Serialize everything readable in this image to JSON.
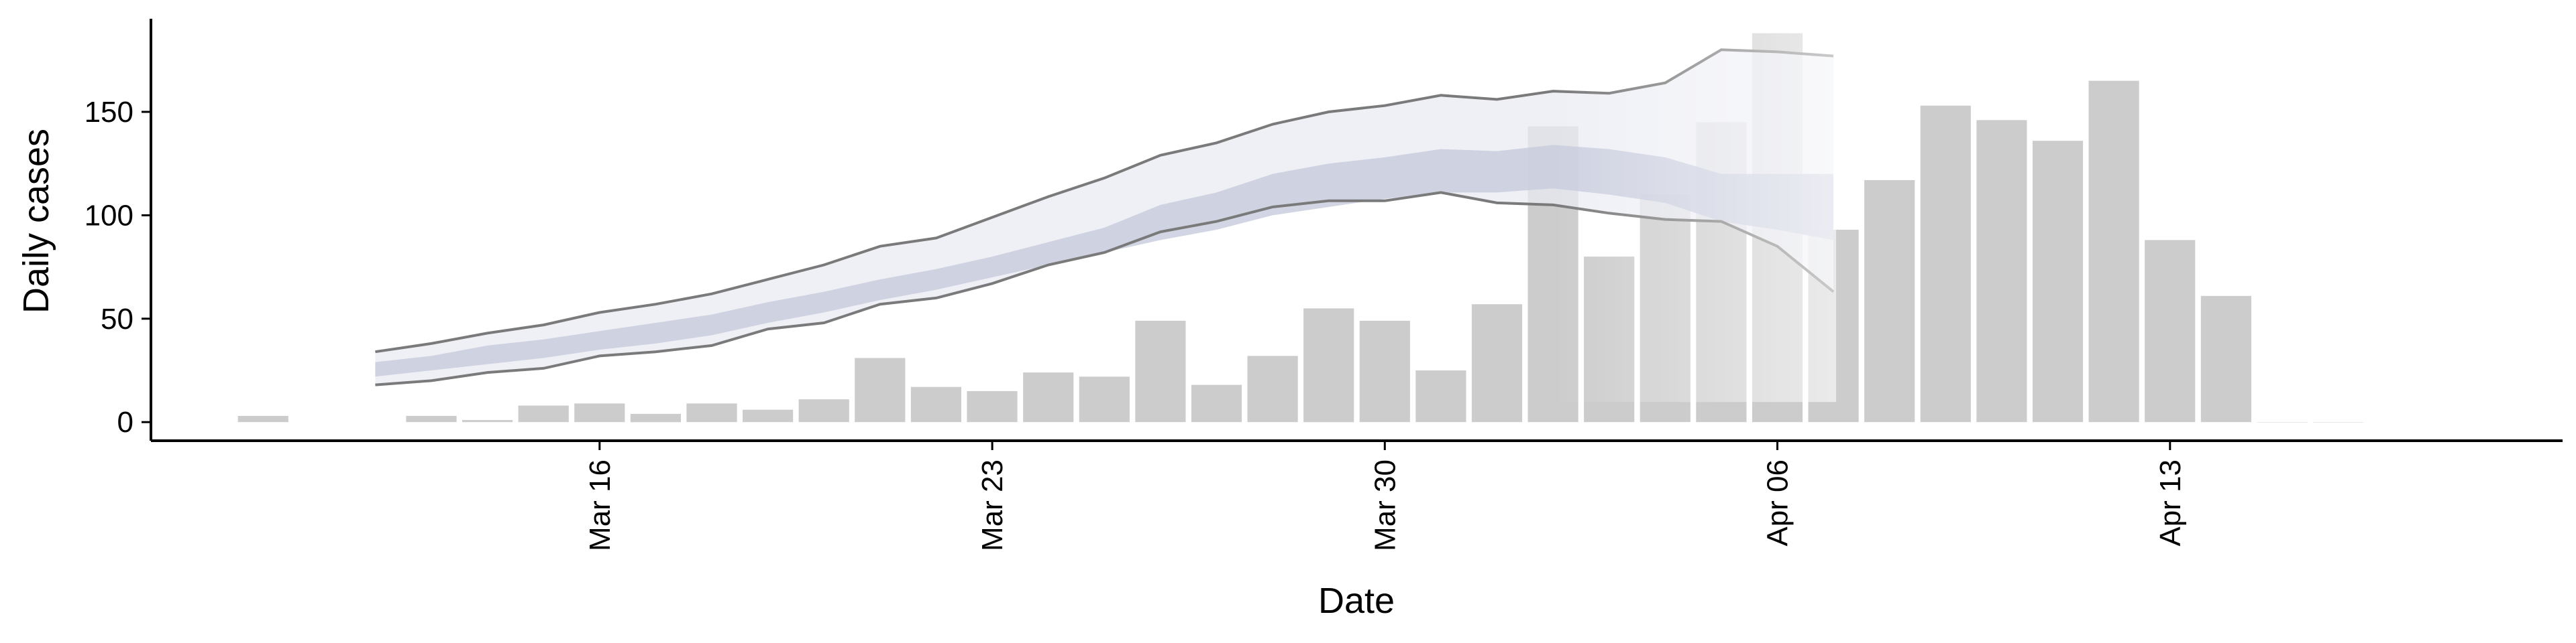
{
  "chart_data": {
    "type": "bar",
    "title": "",
    "xlabel": "Date",
    "ylabel": "Daily cases",
    "x_ticks": [
      "Mar 16",
      "Mar 23",
      "Mar 30",
      "Apr 06",
      "Apr 13"
    ],
    "x_tick_dates": [
      "2020-03-16",
      "2020-03-23",
      "2020-03-30",
      "2020-04-06",
      "2020-04-13"
    ],
    "y_ticks": [
      0,
      50,
      100,
      150
    ],
    "ylim": [
      -9,
      195
    ],
    "xlim": [
      "2020-03-08",
      "2020-04-20"
    ],
    "grid": false,
    "bars": {
      "color": "#cccccc",
      "dates": [
        "2020-03-10",
        "2020-03-13",
        "2020-03-14",
        "2020-03-15",
        "2020-03-16",
        "2020-03-17",
        "2020-03-18",
        "2020-03-19",
        "2020-03-20",
        "2020-03-21",
        "2020-03-22",
        "2020-03-23",
        "2020-03-24",
        "2020-03-25",
        "2020-03-26",
        "2020-03-27",
        "2020-03-28",
        "2020-03-29",
        "2020-03-30",
        "2020-03-31",
        "2020-04-01",
        "2020-04-02",
        "2020-04-03",
        "2020-04-04",
        "2020-04-05",
        "2020-04-06",
        "2020-04-07",
        "2020-04-08",
        "2020-04-09",
        "2020-04-10",
        "2020-04-11",
        "2020-04-12",
        "2020-04-13",
        "2020-04-14",
        "2020-04-15",
        "2020-04-16"
      ],
      "values": [
        3,
        3,
        1,
        8,
        9,
        4,
        9,
        6,
        11,
        31,
        17,
        15,
        24,
        22,
        49,
        18,
        32,
        55,
        49,
        25,
        57,
        143,
        80,
        110,
        145,
        188,
        93,
        117,
        153,
        146,
        136,
        165,
        88,
        61,
        0,
        0
      ]
    },
    "forecast": {
      "dates": [
        "2020-03-12",
        "2020-03-13",
        "2020-03-14",
        "2020-03-15",
        "2020-03-16",
        "2020-03-17",
        "2020-03-18",
        "2020-03-19",
        "2020-03-20",
        "2020-03-21",
        "2020-03-22",
        "2020-03-23",
        "2020-03-24",
        "2020-03-25",
        "2020-03-26",
        "2020-03-27",
        "2020-03-28",
        "2020-03-29",
        "2020-03-30",
        "2020-03-31",
        "2020-04-01",
        "2020-04-02",
        "2020-04-03",
        "2020-04-04",
        "2020-04-05",
        "2020-04-06",
        "2020-04-07"
      ],
      "upper_90": [
        34,
        38,
        43,
        47,
        53,
        57,
        62,
        69,
        76,
        85,
        89,
        99,
        109,
        118,
        129,
        135,
        144,
        150,
        153,
        158,
        156,
        160,
        159,
        164,
        180,
        179,
        177
      ],
      "lower_90": [
        18,
        20,
        24,
        26,
        32,
        34,
        37,
        45,
        48,
        57,
        60,
        67,
        76,
        82,
        92,
        97,
        104,
        107,
        107,
        111,
        106,
        105,
        101,
        98,
        97,
        85,
        63
      ],
      "upper_50": [
        29,
        32,
        37,
        40,
        44,
        48,
        52,
        58,
        63,
        69,
        74,
        80,
        87,
        94,
        105,
        111,
        120,
        125,
        128,
        132,
        131,
        134,
        132,
        128,
        120,
        120,
        120
      ],
      "lower_50": [
        22,
        25,
        28,
        31,
        35,
        38,
        42,
        48,
        53,
        59,
        64,
        70,
        76,
        82,
        88,
        93,
        100,
        104,
        108,
        111,
        111,
        113,
        110,
        106,
        97,
        93,
        88
      ],
      "band_outer_color": "#e9ebf3",
      "band_inner_color": "#c7cbdc",
      "line_color": "#7a7a7a"
    }
  }
}
